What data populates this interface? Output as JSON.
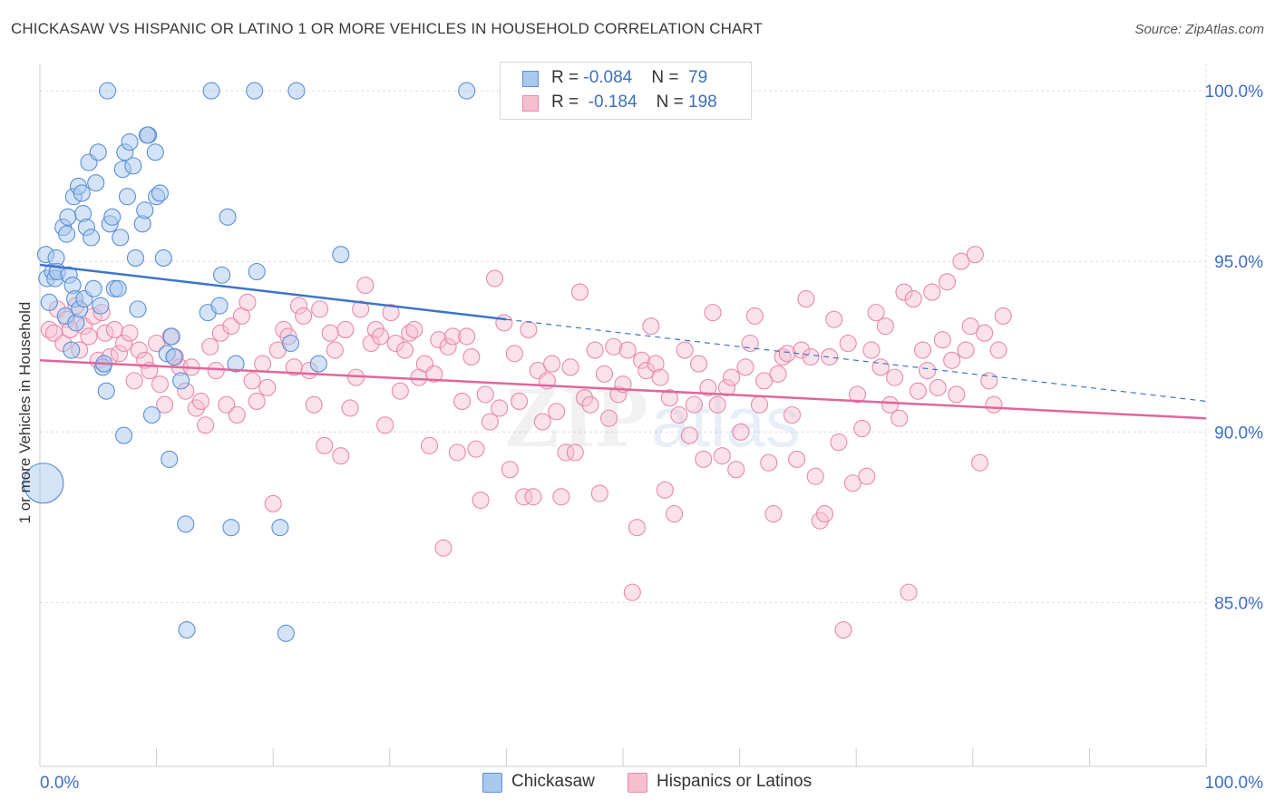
{
  "title": "CHICKASAW VS HISPANIC OR LATINO 1 OR MORE VEHICLES IN HOUSEHOLD CORRELATION CHART",
  "source": "Source: ZipAtlas.com",
  "watermark": {
    "zip": "ZIP",
    "atlas": "atlas"
  },
  "legend": {
    "rows": [
      {
        "r_label": "R = ",
        "r_value": "-0.084",
        "n_label": "N = ",
        "n_value": "79"
      },
      {
        "r_label": "R = ",
        "r_value": "-0.184",
        "n_label": "N = ",
        "n_value": "198"
      }
    ]
  },
  "bottom_legend": {
    "series0": "Chickasaw",
    "series1": "Hispanics or Latinos"
  },
  "colors": {
    "blue_fill": "#a9c8ee",
    "blue_stroke": "#5b8fd6",
    "blue_line": "#3c74cc",
    "pink_fill": "#f6bfd0",
    "pink_stroke": "#e68aa8",
    "pink_line": "#e0679a",
    "axis_label": "#3d6fc4",
    "grid": "#dddddd"
  },
  "chart_data": {
    "type": "scatter",
    "title": "CHICKASAW VS HISPANIC OR LATINO 1 OR MORE VEHICLES IN HOUSEHOLD CORRELATION CHART",
    "xlabel": "",
    "ylabel": "1 or more Vehicles in Household",
    "xlim": [
      0,
      100
    ],
    "ylim": [
      80.2,
      100.8
    ],
    "x_ticks": [
      "0.0%",
      "100.0%"
    ],
    "y_ticks": [
      {
        "value": 85,
        "label": "85.0%"
      },
      {
        "value": 90,
        "label": "90.0%"
      },
      {
        "value": 95,
        "label": "95.0%"
      },
      {
        "value": 100,
        "label": "100.0%"
      }
    ],
    "grid": true,
    "legend_position": "top-center",
    "series": [
      {
        "name": "Chickasaw",
        "r": -0.084,
        "n": 79,
        "trend": {
          "x0": 0,
          "y0": 94.9,
          "x_solid_end": 40,
          "x1": 100,
          "y1": 90.9
        },
        "points": [
          [
            0.3,
            88.5,
            1
          ],
          [
            0.5,
            95.2,
            0
          ],
          [
            0.6,
            94.5,
            0
          ],
          [
            0.8,
            93.8,
            0
          ],
          [
            1.1,
            94.7,
            0
          ],
          [
            1.3,
            94.5,
            0
          ],
          [
            1.4,
            95.1,
            0
          ],
          [
            1.5,
            94.7,
            0
          ],
          [
            2.0,
            96.0,
            0
          ],
          [
            2.2,
            93.4,
            0
          ],
          [
            2.3,
            95.8,
            0
          ],
          [
            2.4,
            96.3,
            0
          ],
          [
            2.5,
            94.6,
            0
          ],
          [
            2.7,
            92.4,
            0
          ],
          [
            2.8,
            94.3,
            0
          ],
          [
            2.9,
            96.9,
            0
          ],
          [
            3.0,
            93.9,
            0
          ],
          [
            3.1,
            93.2,
            0
          ],
          [
            3.3,
            97.2,
            0
          ],
          [
            3.4,
            93.6,
            0
          ],
          [
            3.6,
            97.0,
            0
          ],
          [
            3.7,
            96.4,
            0
          ],
          [
            3.8,
            93.9,
            0
          ],
          [
            4.0,
            96.0,
            0
          ],
          [
            4.2,
            97.9,
            0
          ],
          [
            4.4,
            95.7,
            0
          ],
          [
            4.6,
            94.2,
            0
          ],
          [
            4.8,
            97.3,
            0
          ],
          [
            5.0,
            98.2,
            0
          ],
          [
            5.2,
            93.7,
            0
          ],
          [
            5.4,
            91.9,
            0
          ],
          [
            5.5,
            92.0,
            0
          ],
          [
            5.7,
            91.2,
            0
          ],
          [
            5.8,
            100.0,
            0
          ],
          [
            6.0,
            96.1,
            0
          ],
          [
            6.2,
            96.3,
            0
          ],
          [
            6.4,
            94.2,
            0
          ],
          [
            6.7,
            94.2,
            0
          ],
          [
            6.9,
            95.7,
            0
          ],
          [
            7.1,
            97.7,
            0
          ],
          [
            7.3,
            98.2,
            0
          ],
          [
            7.5,
            96.9,
            0
          ],
          [
            7.7,
            98.5,
            0
          ],
          [
            8.0,
            97.8,
            0
          ],
          [
            8.2,
            95.1,
            0
          ],
          [
            8.4,
            93.6,
            0
          ],
          [
            8.8,
            96.1,
            0
          ],
          [
            9.0,
            96.5,
            0
          ],
          [
            9.3,
            98.7,
            0
          ],
          [
            9.6,
            90.5,
            0
          ],
          [
            9.9,
            98.2,
            0
          ],
          [
            10.0,
            96.9,
            0
          ],
          [
            10.3,
            97.0,
            0
          ],
          [
            10.6,
            95.1,
            0
          ],
          [
            10.9,
            92.3,
            0
          ],
          [
            11.1,
            89.2,
            0
          ],
          [
            11.3,
            92.8,
            0
          ],
          [
            11.5,
            92.2,
            0
          ],
          [
            12.1,
            91.5,
            0
          ],
          [
            12.5,
            87.3,
            0
          ],
          [
            12.6,
            84.2,
            0
          ],
          [
            14.4,
            93.5,
            0
          ],
          [
            14.7,
            100.0,
            0
          ],
          [
            15.6,
            94.6,
            0
          ],
          [
            16.1,
            96.3,
            0
          ],
          [
            16.4,
            87.2,
            0
          ],
          [
            16.8,
            92.0,
            0
          ],
          [
            18.4,
            100.0,
            0
          ],
          [
            18.6,
            94.7,
            0
          ],
          [
            20.6,
            87.2,
            0
          ],
          [
            21.1,
            84.1,
            0
          ],
          [
            21.5,
            92.6,
            0
          ],
          [
            22.0,
            100.0,
            0
          ],
          [
            23.9,
            92.0,
            0
          ],
          [
            25.8,
            95.2,
            0
          ],
          [
            36.6,
            100.0,
            0
          ],
          [
            9.2,
            98.7,
            0
          ],
          [
            7.2,
            89.9,
            0
          ],
          [
            15.4,
            93.7,
            0
          ]
        ]
      },
      {
        "name": "Hispanics or Latinos",
        "r": -0.184,
        "n": 198,
        "trend": {
          "x0": 0,
          "y0": 92.1,
          "x1": 100,
          "y1": 90.4
        },
        "points": [
          [
            0.8,
            93.0
          ],
          [
            1.2,
            92.9
          ],
          [
            1.5,
            93.6
          ],
          [
            2.0,
            92.6
          ],
          [
            2.3,
            93.3
          ],
          [
            2.6,
            93.0
          ],
          [
            3.1,
            93.7
          ],
          [
            3.4,
            92.4
          ],
          [
            3.8,
            93.1
          ],
          [
            4.2,
            92.8
          ],
          [
            4.6,
            93.4
          ],
          [
            5.0,
            92.1
          ],
          [
            5.3,
            93.5
          ],
          [
            5.6,
            92.9
          ],
          [
            6.0,
            92.2
          ],
          [
            6.4,
            93.0
          ],
          [
            6.8,
            92.3
          ],
          [
            7.2,
            92.6
          ],
          [
            7.7,
            92.9
          ],
          [
            8.1,
            91.5
          ],
          [
            8.5,
            92.4
          ],
          [
            9.0,
            92.1
          ],
          [
            9.4,
            91.8
          ],
          [
            10.0,
            92.6
          ],
          [
            10.3,
            91.4
          ],
          [
            10.7,
            90.8
          ],
          [
            11.2,
            92.8
          ],
          [
            11.6,
            92.2
          ],
          [
            12.0,
            91.9
          ],
          [
            12.5,
            91.2
          ],
          [
            13.0,
            91.9
          ],
          [
            13.4,
            90.7
          ],
          [
            13.8,
            90.9
          ],
          [
            14.2,
            90.2
          ],
          [
            14.6,
            92.5
          ],
          [
            15.1,
            91.8
          ],
          [
            15.5,
            92.9
          ],
          [
            16.0,
            90.8
          ],
          [
            16.4,
            93.1
          ],
          [
            16.9,
            90.5
          ],
          [
            17.3,
            93.4
          ],
          [
            17.8,
            93.8
          ],
          [
            18.2,
            91.5
          ],
          [
            18.6,
            90.9
          ],
          [
            19.1,
            92.0
          ],
          [
            19.5,
            91.3
          ],
          [
            20.0,
            87.9
          ],
          [
            20.4,
            92.4
          ],
          [
            20.9,
            93.0
          ],
          [
            21.3,
            92.8
          ],
          [
            21.8,
            91.9
          ],
          [
            22.2,
            93.7
          ],
          [
            22.6,
            93.4
          ],
          [
            23.1,
            91.8
          ],
          [
            23.5,
            90.8
          ],
          [
            24.0,
            93.6
          ],
          [
            24.4,
            89.6
          ],
          [
            24.9,
            92.9
          ],
          [
            25.3,
            92.4
          ],
          [
            25.8,
            89.3
          ],
          [
            26.2,
            93.0
          ],
          [
            26.6,
            90.7
          ],
          [
            27.1,
            91.6
          ],
          [
            27.5,
            93.6
          ],
          [
            27.9,
            94.3
          ],
          [
            28.4,
            92.6
          ],
          [
            28.8,
            93.0
          ],
          [
            29.2,
            92.8
          ],
          [
            29.6,
            90.2
          ],
          [
            30.1,
            93.5
          ],
          [
            30.5,
            92.6
          ],
          [
            30.9,
            91.2
          ],
          [
            31.3,
            92.4
          ],
          [
            31.7,
            92.9
          ],
          [
            32.1,
            93.0
          ],
          [
            32.5,
            91.6
          ],
          [
            33.0,
            92.0
          ],
          [
            33.4,
            89.6
          ],
          [
            33.8,
            91.7
          ],
          [
            34.2,
            92.7
          ],
          [
            34.6,
            86.6
          ],
          [
            35.0,
            92.5
          ],
          [
            35.4,
            92.8
          ],
          [
            35.8,
            89.4
          ],
          [
            36.2,
            90.9
          ],
          [
            36.6,
            92.8
          ],
          [
            37.0,
            92.2
          ],
          [
            37.4,
            89.5
          ],
          [
            37.8,
            88.0
          ],
          [
            38.2,
            91.1
          ],
          [
            38.6,
            90.3
          ],
          [
            39.0,
            94.5
          ],
          [
            39.4,
            90.7
          ],
          [
            39.8,
            93.2
          ],
          [
            40.3,
            88.9
          ],
          [
            40.7,
            92.3
          ],
          [
            41.1,
            90.9
          ],
          [
            41.5,
            88.1
          ],
          [
            41.9,
            93.0
          ],
          [
            42.3,
            88.1
          ],
          [
            42.7,
            91.8
          ],
          [
            43.1,
            90.3
          ],
          [
            43.5,
            91.5
          ],
          [
            43.9,
            92.0
          ],
          [
            44.3,
            90.6
          ],
          [
            44.7,
            88.1
          ],
          [
            45.1,
            89.4
          ],
          [
            45.5,
            91.9
          ],
          [
            45.9,
            89.4
          ],
          [
            46.3,
            94.1
          ],
          [
            46.7,
            91.0
          ],
          [
            47.2,
            90.8
          ],
          [
            47.6,
            92.4
          ],
          [
            48.0,
            88.2
          ],
          [
            48.4,
            91.7
          ],
          [
            48.8,
            90.4
          ],
          [
            49.2,
            92.5
          ],
          [
            49.6,
            91.1
          ],
          [
            50.0,
            91.4
          ],
          [
            50.4,
            92.4
          ],
          [
            50.8,
            85.3
          ],
          [
            51.2,
            87.2
          ],
          [
            51.6,
            92.1
          ],
          [
            52.0,
            91.8
          ],
          [
            52.4,
            93.1
          ],
          [
            52.8,
            92.0
          ],
          [
            53.2,
            91.6
          ],
          [
            53.6,
            88.3
          ],
          [
            54.0,
            91.0
          ],
          [
            54.4,
            87.6
          ],
          [
            54.8,
            90.5
          ],
          [
            55.3,
            92.4
          ],
          [
            55.7,
            89.9
          ],
          [
            56.1,
            90.8
          ],
          [
            56.5,
            92.0
          ],
          [
            56.9,
            89.2
          ],
          [
            57.3,
            91.3
          ],
          [
            57.7,
            93.5
          ],
          [
            58.1,
            90.8
          ],
          [
            58.5,
            89.3
          ],
          [
            58.9,
            91.3
          ],
          [
            59.3,
            91.6
          ],
          [
            59.7,
            88.9
          ],
          [
            60.1,
            90.0
          ],
          [
            60.5,
            91.9
          ],
          [
            60.9,
            92.6
          ],
          [
            61.3,
            93.4
          ],
          [
            61.7,
            90.8
          ],
          [
            62.1,
            91.5
          ],
          [
            62.5,
            89.1
          ],
          [
            62.9,
            87.6
          ],
          [
            63.3,
            91.7
          ],
          [
            63.7,
            92.2
          ],
          [
            64.1,
            92.3
          ],
          [
            64.5,
            90.5
          ],
          [
            64.9,
            89.2
          ],
          [
            65.3,
            92.4
          ],
          [
            65.7,
            93.9
          ],
          [
            66.1,
            92.2
          ],
          [
            66.5,
            88.7
          ],
          [
            66.9,
            87.4
          ],
          [
            67.3,
            87.6
          ],
          [
            67.7,
            92.2
          ],
          [
            68.1,
            93.3
          ],
          [
            68.5,
            89.7
          ],
          [
            68.9,
            84.2
          ],
          [
            69.3,
            92.6
          ],
          [
            69.7,
            88.5
          ],
          [
            70.1,
            91.1
          ],
          [
            70.5,
            90.1
          ],
          [
            70.9,
            88.7
          ],
          [
            71.3,
            92.4
          ],
          [
            71.7,
            93.5
          ],
          [
            72.1,
            91.9
          ],
          [
            72.5,
            93.1
          ],
          [
            72.9,
            90.8
          ],
          [
            73.3,
            91.6
          ],
          [
            73.7,
            90.4
          ],
          [
            74.1,
            94.1
          ],
          [
            74.5,
            85.3
          ],
          [
            74.9,
            93.9
          ],
          [
            75.3,
            91.2
          ],
          [
            75.7,
            92.4
          ],
          [
            76.1,
            91.8
          ],
          [
            76.5,
            94.1
          ],
          [
            77.0,
            91.3
          ],
          [
            77.4,
            92.7
          ],
          [
            77.8,
            94.4
          ],
          [
            78.2,
            92.1
          ],
          [
            78.6,
            91.1
          ],
          [
            79.0,
            95.0
          ],
          [
            79.4,
            92.4
          ],
          [
            79.8,
            93.1
          ],
          [
            80.2,
            95.2
          ],
          [
            80.6,
            89.1
          ],
          [
            81.0,
            92.9
          ],
          [
            81.4,
            91.5
          ],
          [
            81.8,
            90.8
          ],
          [
            82.2,
            92.4
          ],
          [
            82.6,
            93.4
          ]
        ]
      }
    ]
  }
}
